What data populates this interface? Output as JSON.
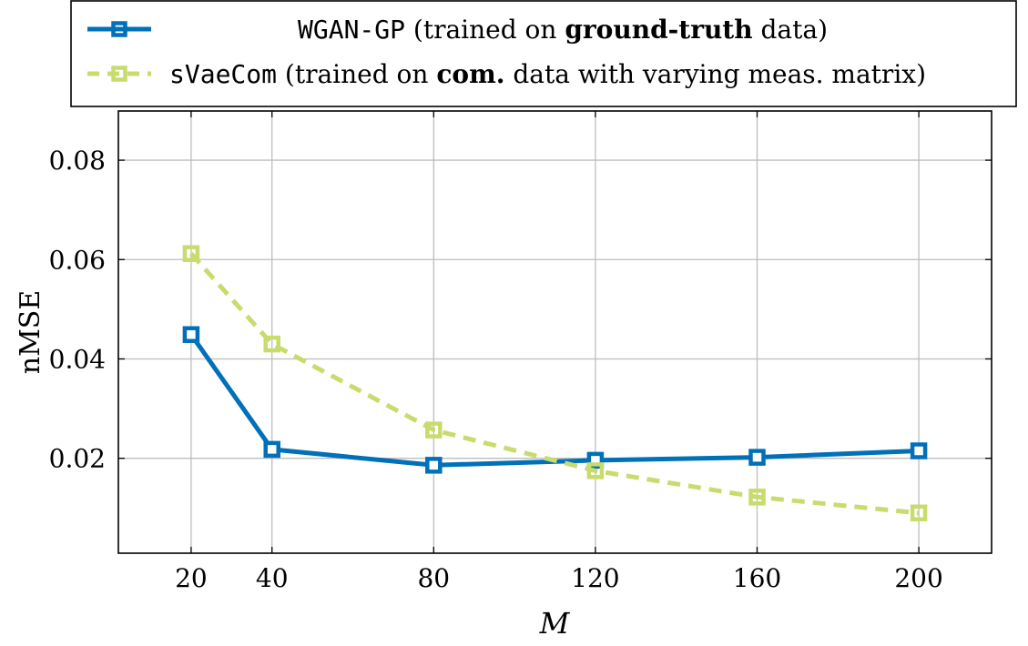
{
  "chart_data": {
    "type": "line",
    "title": "",
    "xlabel": "M",
    "ylabel": "nMSE",
    "x": [
      20,
      40,
      80,
      120,
      160,
      200
    ],
    "x_ticks": [
      "20",
      "40",
      "80",
      "120",
      "160",
      "200"
    ],
    "y_ticks": [
      "0.02",
      "0.04",
      "0.06",
      "0.08"
    ],
    "y_tick_values": [
      0.02,
      0.04,
      0.06,
      0.08
    ],
    "xlim": [
      2,
      218
    ],
    "ylim": [
      0.0009,
      0.0899
    ],
    "grid": true,
    "legend_position": "top",
    "series": [
      {
        "name": "WGAN-GP",
        "legend_mid": " (trained on ",
        "legend_bold": "ground-truth",
        "legend_suffix": " data)",
        "values": [
          0.0449,
          0.0218,
          0.0186,
          0.0196,
          0.0202,
          0.0215
        ],
        "color": "#0070b8",
        "style": "solid"
      },
      {
        "name": "sVaeCom",
        "legend_mid": " (trained on ",
        "legend_bold": "com.",
        "legend_suffix": " data with varying meas. matrix)",
        "values": [
          0.0612,
          0.043,
          0.0257,
          0.0175,
          0.0122,
          0.009
        ],
        "color": "#c8dc6e",
        "style": "dashed"
      }
    ]
  }
}
